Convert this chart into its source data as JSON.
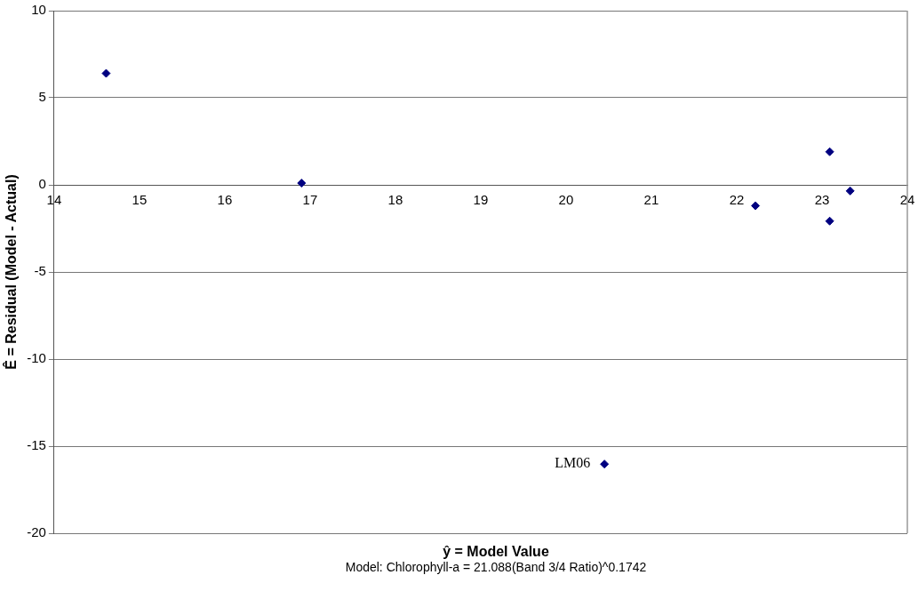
{
  "chart_data": {
    "type": "scatter",
    "xlabel": "ŷ  = Model Value",
    "ylabel": "Ê = Residual (Model - Actual)",
    "annotations": [
      {
        "text": "LM06",
        "x": 20.45,
        "y": -16.03
      },
      "Model: Chlorophyll-a = 21.088(Band 3/4 Ratio)^0.1742"
    ],
    "x": [
      14.61,
      16.9,
      22.22,
      23.09,
      23.09,
      23.33,
      20.45
    ],
    "series": [
      {
        "color": "#000080",
        "values": [
          6.4,
          0.1,
          -1.2,
          1.9,
          -2.08,
          -0.35,
          -16.03
        ]
      }
    ],
    "xlim": [
      14,
      24
    ],
    "xticks": [
      14,
      15,
      16,
      17,
      18,
      19,
      20,
      21,
      22,
      23,
      24
    ],
    "ylim": [
      -20,
      10
    ],
    "yticks": [
      -20,
      -15,
      -10,
      -5,
      0,
      5,
      10
    ],
    "grid": "y",
    "legend": false,
    "marker": "diamond"
  }
}
